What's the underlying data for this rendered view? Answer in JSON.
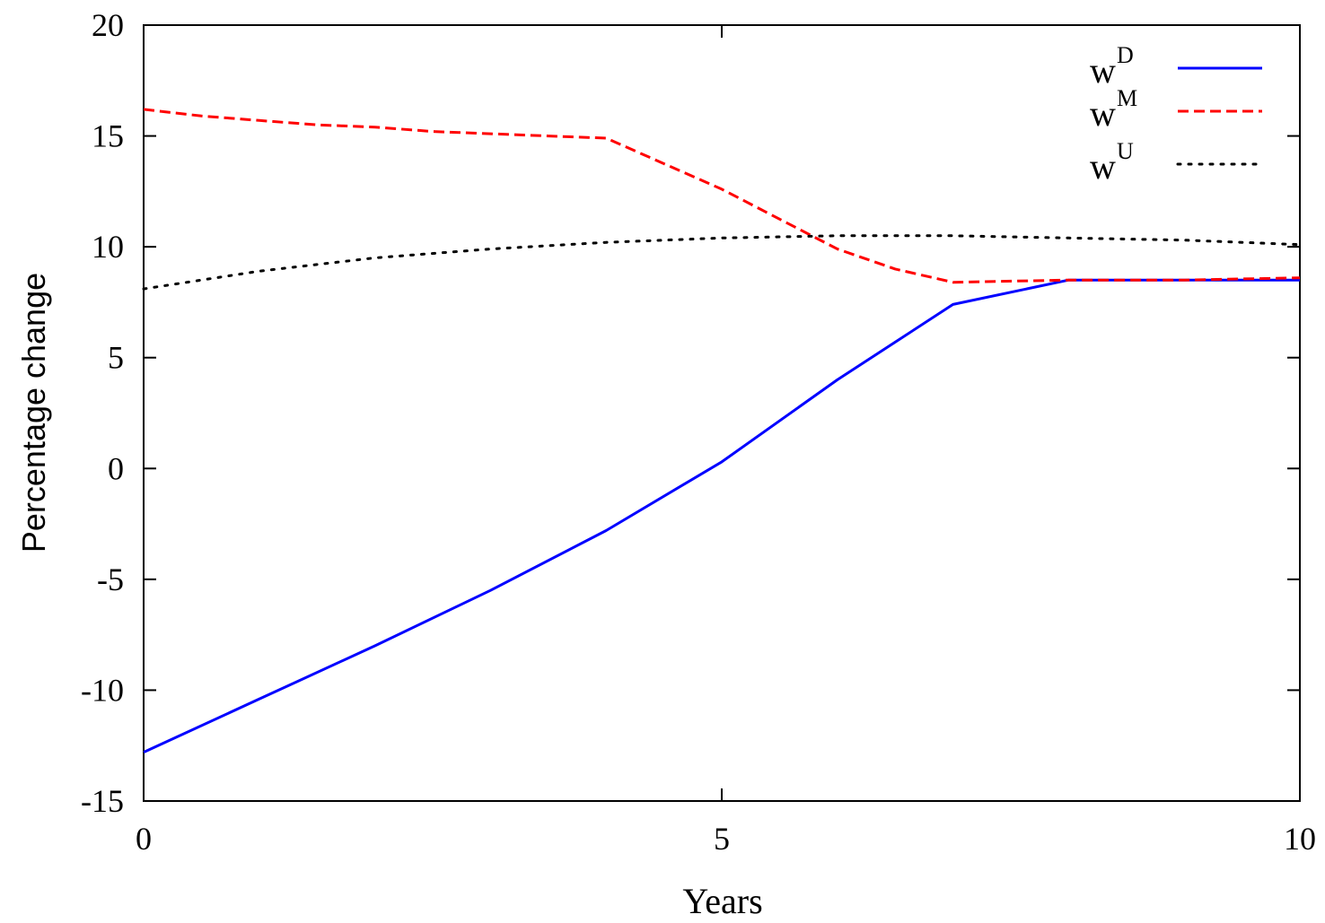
{
  "chart_data": {
    "type": "line",
    "xlabel": "Years",
    "ylabel": "Percentage change",
    "xlim": [
      0,
      10
    ],
    "ylim": [
      -15,
      20
    ],
    "xticks": [
      0,
      5,
      10
    ],
    "yticks": [
      -15,
      -10,
      -5,
      0,
      5,
      10,
      15,
      20
    ],
    "xtick_labels": [
      "0",
      "5",
      "10"
    ],
    "ytick_labels": [
      "-15",
      "-10",
      "-5",
      "0",
      "5",
      "10",
      "15",
      "20"
    ],
    "grid": false,
    "legend_position": "top-right",
    "series": [
      {
        "name_base": "w",
        "name_sup": "D",
        "color": "#0000ff",
        "style": "solid",
        "x": [
          0,
          1,
          2,
          3,
          4,
          5,
          6,
          7,
          8,
          9,
          10
        ],
        "y": [
          -12.8,
          -10.4,
          -8.0,
          -5.5,
          -2.8,
          0.3,
          4.0,
          7.4,
          8.5,
          8.5,
          8.5
        ]
      },
      {
        "name_base": "w",
        "name_sup": "M",
        "color": "#ff0000",
        "style": "dashed",
        "x": [
          0,
          0.5,
          1,
          1.5,
          2,
          2.5,
          3,
          3.5,
          4,
          5,
          6,
          6.5,
          7,
          8,
          9,
          10
        ],
        "y": [
          16.2,
          15.9,
          15.7,
          15.5,
          15.4,
          15.2,
          15.1,
          15.0,
          14.9,
          12.6,
          9.9,
          9.0,
          8.4,
          8.5,
          8.5,
          8.6
        ]
      },
      {
        "name_base": "w",
        "name_sup": "U",
        "color": "#000000",
        "style": "dotted",
        "x": [
          0,
          1,
          2,
          3,
          4,
          5,
          6,
          7,
          8,
          9,
          10
        ],
        "y": [
          8.1,
          8.9,
          9.5,
          9.9,
          10.2,
          10.4,
          10.5,
          10.5,
          10.4,
          10.3,
          10.1
        ]
      }
    ]
  }
}
